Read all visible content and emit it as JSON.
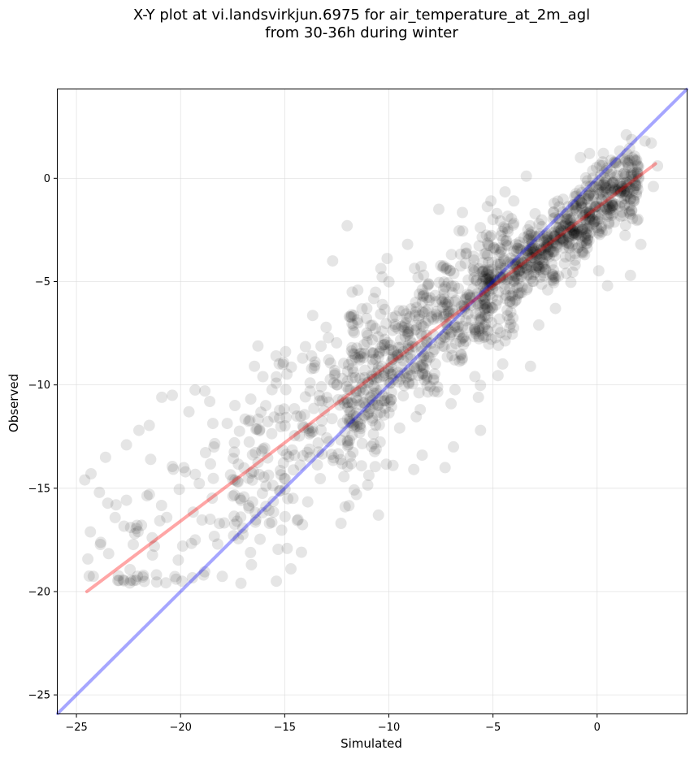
{
  "chart_data": {
    "type": "scatter",
    "title": "X-Y plot at vi.landsvirkjun.6975 for air_temperature_at_2m_agl",
    "subtitle": "from 30-36h during winter",
    "xlabel": "Simulated",
    "ylabel": "Observed",
    "xlim": [
      -25.9,
      4.3
    ],
    "ylim": [
      -25.9,
      4.3
    ],
    "x_ticks": [
      -25,
      -20,
      -15,
      -10,
      -5,
      0
    ],
    "y_ticks": [
      -25,
      -20,
      -15,
      -10,
      -5,
      0
    ],
    "x_tick_labels": [
      "−25",
      "−20",
      "−15",
      "−10",
      "−5",
      "0"
    ],
    "y_tick_labels": [
      "−25",
      "−20",
      "−15",
      "−10",
      "−5",
      "0"
    ],
    "grid": true,
    "marker_color": "#000000",
    "marker_alpha": 0.1,
    "lines": [
      {
        "role": "identity",
        "color": "#0000ff",
        "alpha": 0.35,
        "x": [
          -25.9,
          4.3
        ],
        "y": [
          -25.9,
          4.3
        ]
      },
      {
        "role": "regression",
        "color": "#ff0000",
        "alpha": 0.35,
        "x": [
          -24.5,
          2.8
        ],
        "y": [
          -20.0,
          0.7
        ]
      }
    ],
    "outlier_points": [
      {
        "x": -24.6,
        "y": -14.6
      },
      {
        "x": -24.3,
        "y": -14.3
      },
      {
        "x": -23.9,
        "y": -15.2
      },
      {
        "x": -23.6,
        "y": -13.5
      },
      {
        "x": -23.1,
        "y": -15.8
      },
      {
        "x": -22.6,
        "y": -12.9
      },
      {
        "x": -22.4,
        "y": -16.9
      },
      {
        "x": -22.2,
        "y": -17.2
      },
      {
        "x": -22.0,
        "y": -12.2
      },
      {
        "x": -21.5,
        "y": -15.3
      },
      {
        "x": -20.9,
        "y": -10.6
      },
      {
        "x": -20.4,
        "y": -10.5
      },
      {
        "x": -19.9,
        "y": -17.8
      },
      {
        "x": -19.6,
        "y": -11.3
      },
      {
        "x": -19.3,
        "y": -17.5
      },
      {
        "x": -18.9,
        "y": -19.2
      },
      {
        "x": -18.6,
        "y": -10.8
      },
      {
        "x": -17.1,
        "y": -19.6
      },
      {
        "x": -16.6,
        "y": -18.7
      },
      {
        "x": -15.4,
        "y": -19.5
      },
      {
        "x": -14.7,
        "y": -18.9
      },
      {
        "x": -14.2,
        "y": -18.1
      },
      {
        "x": -12.6,
        "y": -9.3
      },
      {
        "x": -12.3,
        "y": -16.7
      },
      {
        "x": -12.1,
        "y": -15.9
      },
      {
        "x": -12.0,
        "y": -2.3
      },
      {
        "x": -12.7,
        "y": -4.0
      },
      {
        "x": -11.9,
        "y": -6.7
      },
      {
        "x": -11.4,
        "y": -8.5
      },
      {
        "x": -10.5,
        "y": -16.3
      },
      {
        "x": -9.8,
        "y": -13.9
      },
      {
        "x": -9.1,
        "y": -3.2
      },
      {
        "x": -8.6,
        "y": -4.8
      },
      {
        "x": -8.4,
        "y": -13.4
      },
      {
        "x": -7.6,
        "y": -1.5
      },
      {
        "x": -7.3,
        "y": -14.0
      },
      {
        "x": -6.9,
        "y": -13.0
      },
      {
        "x": -5.7,
        "y": -10.6
      },
      {
        "x": -5.6,
        "y": -12.2
      },
      {
        "x": -5.1,
        "y": -1.1
      },
      {
        "x": -5.0,
        "y": -2.0
      },
      {
        "x": -4.0,
        "y": -1.1
      },
      {
        "x": -3.8,
        "y": -3.4
      },
      {
        "x": -3.4,
        "y": 0.1
      },
      {
        "x": -3.2,
        "y": -9.1
      },
      {
        "x": -2.8,
        "y": -7.1
      },
      {
        "x": -2.0,
        "y": -6.3
      },
      {
        "x": -0.6,
        "y": -3.7
      },
      {
        "x": 0.5,
        "y": -5.2
      },
      {
        "x": 1.6,
        "y": -4.7
      },
      {
        "x": 2.1,
        "y": -3.2
      },
      {
        "x": 2.3,
        "y": 1.8
      },
      {
        "x": 2.6,
        "y": 1.7
      },
      {
        "x": 2.9,
        "y": 0.6
      },
      {
        "x": 2.7,
        "y": -0.4
      },
      {
        "x": 1.4,
        "y": 2.1
      },
      {
        "x": 0.3,
        "y": 1.2
      },
      {
        "x": -0.8,
        "y": 1.0
      },
      {
        "x": -6.1,
        "y": -5.8
      },
      {
        "x": -10.6,
        "y": -10.4
      }
    ],
    "point_cloud_summary": {
      "n_points_approx": 1500,
      "x_range": [
        -24.6,
        3.0
      ],
      "y_range": [
        -19.6,
        2.3
      ]
    }
  }
}
